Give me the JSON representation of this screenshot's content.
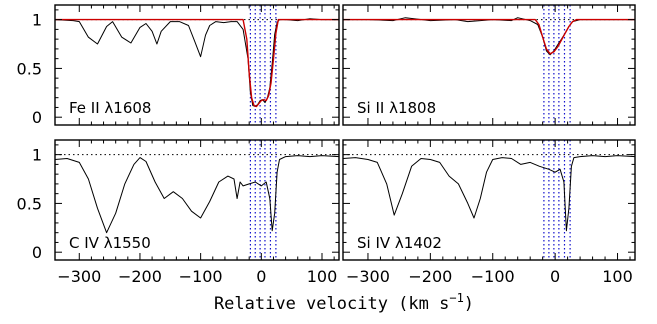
{
  "chart_data": [
    {
      "type": "line",
      "panel_label": "Fe II λ1608",
      "xlim": [
        -340,
        128
      ],
      "ylim": [
        -0.08,
        1.15
      ],
      "yticks": [
        0,
        0.5,
        1
      ],
      "ytick_labels": [
        "0",
        "0.5",
        "1"
      ],
      "xticks": [
        -300,
        -200,
        -100,
        0,
        100
      ],
      "reference_line": 1,
      "component_velocities": [
        -18,
        -10,
        -2,
        6,
        15,
        24
      ],
      "series": [
        {
          "color": "#000000",
          "x": [
            -340,
            -310,
            -300,
            -285,
            -270,
            -255,
            -245,
            -230,
            -215,
            -200,
            -190,
            -180,
            -172,
            -165,
            -150,
            -135,
            -120,
            -110,
            -100,
            -92,
            -85,
            -75,
            -62,
            -50,
            -40,
            -30,
            -22,
            -18,
            -14,
            -10,
            -6,
            -2,
            2,
            6,
            10,
            14,
            18,
            22,
            26,
            30,
            40,
            60,
            80,
            100,
            128
          ],
          "y": [
            1.0,
            0.99,
            0.98,
            0.82,
            0.75,
            0.93,
            0.98,
            0.82,
            0.76,
            0.92,
            0.96,
            0.88,
            0.75,
            0.88,
            0.98,
            0.98,
            0.94,
            0.78,
            0.62,
            0.84,
            0.94,
            0.98,
            0.97,
            0.98,
            0.98,
            0.9,
            0.6,
            0.25,
            0.12,
            0.11,
            0.13,
            0.17,
            0.18,
            0.15,
            0.2,
            0.3,
            0.55,
            0.85,
            0.97,
            1.0,
            1.0,
            0.99,
            1.01,
            1.0,
            1.0
          ]
        },
        {
          "color": "#cc0000",
          "x": [
            -340,
            -30,
            -24,
            -20,
            -16,
            -12,
            -8,
            -4,
            0,
            4,
            8,
            12,
            16,
            20,
            24,
            28,
            128
          ],
          "y": [
            1.0,
            1.0,
            0.8,
            0.45,
            0.2,
            0.12,
            0.11,
            0.14,
            0.17,
            0.18,
            0.17,
            0.22,
            0.35,
            0.6,
            0.86,
            1.0,
            1.0
          ]
        }
      ]
    },
    {
      "type": "line",
      "panel_label": "Si II λ1808",
      "xlim": [
        -340,
        128
      ],
      "ylim": [
        -0.08,
        1.15
      ],
      "yticks": [
        0,
        0.5,
        1
      ],
      "ytick_labels": [
        "",
        "",
        ""
      ],
      "xticks": [
        -300,
        -200,
        -100,
        0,
        100
      ],
      "reference_line": 1,
      "component_velocities": [
        -18,
        -10,
        -2,
        6,
        15,
        24
      ],
      "series": [
        {
          "color": "#000000",
          "x": [
            -340,
            -300,
            -260,
            -240,
            -200,
            -160,
            -140,
            -100,
            -70,
            -60,
            -40,
            -28,
            -20,
            -14,
            -8,
            -2,
            4,
            10,
            16,
            22,
            28,
            40,
            60,
            100,
            128
          ],
          "y": [
            1.0,
            1.0,
            0.99,
            1.02,
            0.99,
            1.0,
            0.98,
            1.0,
            0.99,
            1.02,
            0.99,
            0.95,
            0.82,
            0.68,
            0.64,
            0.68,
            0.74,
            0.8,
            0.86,
            0.93,
            0.98,
            1.0,
            1.0,
            1.0,
            1.0
          ]
        },
        {
          "color": "#cc0000",
          "x": [
            -340,
            -32,
            -26,
            -20,
            -14,
            -8,
            -2,
            4,
            10,
            16,
            22,
            28,
            34,
            128
          ],
          "y": [
            1.0,
            1.0,
            0.95,
            0.82,
            0.7,
            0.65,
            0.67,
            0.72,
            0.79,
            0.86,
            0.93,
            0.98,
            1.0,
            1.0
          ]
        }
      ]
    },
    {
      "type": "line",
      "panel_label": "C IV λ1550",
      "xlim": [
        -340,
        128
      ],
      "ylim": [
        -0.08,
        1.15
      ],
      "yticks": [
        0,
        0.5,
        1
      ],
      "ytick_labels": [
        "0",
        "0.5",
        "1"
      ],
      "xticks": [
        -300,
        -200,
        -100,
        0,
        100
      ],
      "xtick_labels": [
        "−300",
        "−200",
        "−100",
        "0",
        "100"
      ],
      "reference_line": 1,
      "component_velocities": [
        -18,
        -10,
        -2,
        6,
        15,
        24
      ],
      "series": [
        {
          "color": "#000000",
          "x": [
            -340,
            -320,
            -300,
            -285,
            -270,
            -255,
            -240,
            -225,
            -210,
            -200,
            -190,
            -175,
            -160,
            -145,
            -130,
            -115,
            -100,
            -85,
            -70,
            -55,
            -45,
            -40,
            -35,
            -30,
            -20,
            -10,
            0,
            8,
            14,
            18,
            22,
            26,
            30,
            40,
            60,
            80,
            100,
            128
          ],
          "y": [
            0.95,
            0.96,
            0.92,
            0.75,
            0.45,
            0.2,
            0.4,
            0.7,
            0.9,
            0.97,
            0.93,
            0.72,
            0.55,
            0.62,
            0.55,
            0.42,
            0.35,
            0.52,
            0.72,
            0.78,
            0.75,
            0.55,
            0.72,
            0.68,
            0.7,
            0.72,
            0.68,
            0.72,
            0.55,
            0.22,
            0.4,
            0.82,
            0.95,
            0.98,
            0.99,
            0.98,
            0.99,
            0.98
          ]
        }
      ]
    },
    {
      "type": "line",
      "panel_label": "Si IV λ1402",
      "xlim": [
        -340,
        128
      ],
      "ylim": [
        -0.08,
        1.15
      ],
      "yticks": [
        0,
        0.5,
        1
      ],
      "ytick_labels": [
        "",
        "",
        ""
      ],
      "xticks": [
        -300,
        -200,
        -100,
        0,
        100
      ],
      "xtick_labels": [
        "−300",
        "−200",
        "−100",
        "0",
        "100"
      ],
      "reference_line": 1,
      "component_velocities": [
        -18,
        -10,
        -2,
        6,
        15,
        24
      ],
      "series": [
        {
          "color": "#000000",
          "x": [
            -340,
            -320,
            -300,
            -285,
            -270,
            -258,
            -245,
            -230,
            -215,
            -200,
            -185,
            -170,
            -155,
            -140,
            -130,
            -120,
            -110,
            -100,
            -85,
            -70,
            -55,
            -40,
            -25,
            -10,
            0,
            8,
            14,
            18,
            22,
            26,
            30,
            40,
            60,
            80,
            100,
            128
          ],
          "y": [
            0.96,
            0.97,
            0.95,
            0.92,
            0.7,
            0.38,
            0.6,
            0.88,
            0.96,
            0.95,
            0.92,
            0.78,
            0.7,
            0.5,
            0.35,
            0.55,
            0.82,
            0.95,
            0.97,
            0.96,
            0.9,
            0.92,
            0.88,
            0.85,
            0.82,
            0.85,
            0.72,
            0.22,
            0.45,
            0.88,
            0.97,
            0.98,
            0.99,
            0.98,
            0.99,
            0.98
          ]
        }
      ]
    }
  ],
  "xlabel": "Relative velocity (km s",
  "xlabel_exponent": "−1",
  "xlabel_close": ")",
  "colors": {
    "data": "#000000",
    "fit": "#cc0000",
    "components": "#1111cc"
  }
}
